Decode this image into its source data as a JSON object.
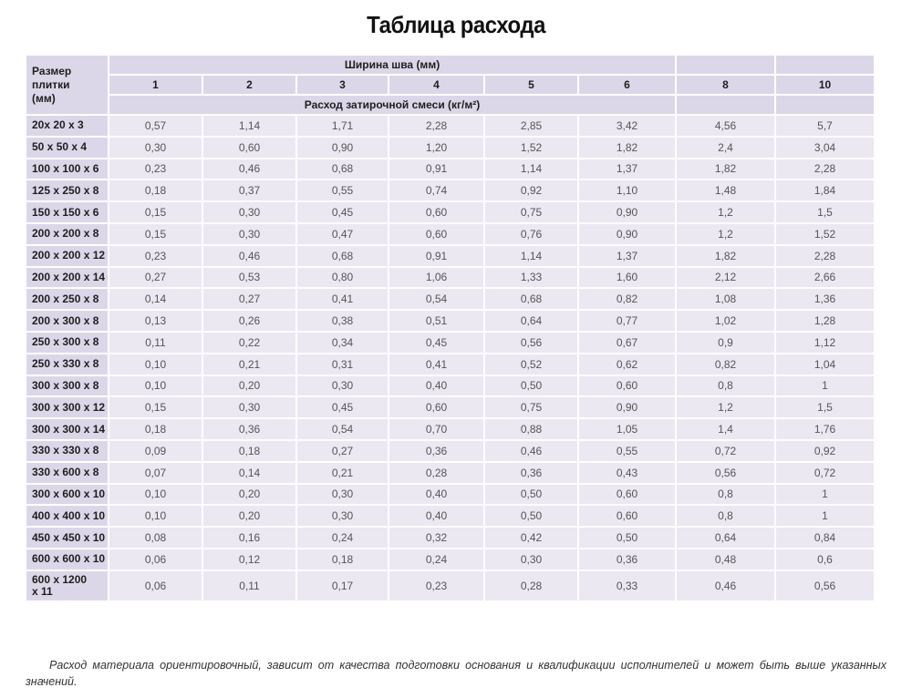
{
  "page": {
    "title": "Таблица расхода",
    "note": "Расход материала ориентировочный, зависит от качества подготовки основания и квалификации исполнителей и может быть выше указанных значений."
  },
  "table": {
    "size_header": "Размер плитки (мм)",
    "size_header_lines": [
      "Размер",
      "плитки",
      "(мм)"
    ],
    "group_header": "Ширина шва (мм)",
    "sub_header": "Расход затирочной смеси (кг/м²)",
    "columns": [
      "1",
      "2",
      "3",
      "4",
      "5",
      "6",
      "8",
      "10"
    ],
    "rows": [
      {
        "size": "20x 20 x 3",
        "values": [
          "0,57",
          "1,14",
          "1,71",
          "2,28",
          "2,85",
          "3,42",
          "4,56",
          "5,7"
        ]
      },
      {
        "size": "50 x 50 x 4",
        "values": [
          "0,30",
          "0,60",
          "0,90",
          "1,20",
          "1,52",
          "1,82",
          "2,4",
          "3,04"
        ]
      },
      {
        "size": "100 x 100 x 6",
        "values": [
          "0,23",
          "0,46",
          "0,68",
          "0,91",
          "1,14",
          "1,37",
          "1,82",
          "2,28"
        ]
      },
      {
        "size": "125 x 250 x 8",
        "values": [
          "0,18",
          "0,37",
          "0,55",
          "0,74",
          "0,92",
          "1,10",
          "1,48",
          "1,84"
        ]
      },
      {
        "size": "150 x 150 x 6",
        "values": [
          "0,15",
          "0,30",
          "0,45",
          "0,60",
          "0,75",
          "0,90",
          "1,2",
          "1,5"
        ]
      },
      {
        "size": "200 x 200 x 8",
        "values": [
          "0,15",
          "0,30",
          "0,47",
          "0,60",
          "0,76",
          "0,90",
          "1,2",
          "1,52"
        ]
      },
      {
        "size": "200 x 200 x 12",
        "values": [
          "0,23",
          "0,46",
          "0,68",
          "0,91",
          "1,14",
          "1,37",
          "1,82",
          "2,28"
        ]
      },
      {
        "size": "200 x 200 x 14",
        "values": [
          "0,27",
          "0,53",
          "0,80",
          "1,06",
          "1,33",
          "1,60",
          "2,12",
          "2,66"
        ]
      },
      {
        "size": "200 x 250 x 8",
        "values": [
          "0,14",
          "0,27",
          "0,41",
          "0,54",
          "0,68",
          "0,82",
          "1,08",
          "1,36"
        ]
      },
      {
        "size": "200 x 300 x 8",
        "values": [
          "0,13",
          "0,26",
          "0,38",
          "0,51",
          "0,64",
          "0,77",
          "1,02",
          "1,28"
        ]
      },
      {
        "size": "250 x 300 x 8",
        "values": [
          "0,11",
          "0,22",
          "0,34",
          "0,45",
          "0,56",
          "0,67",
          "0,9",
          "1,12"
        ]
      },
      {
        "size": "250 x 330 x 8",
        "values": [
          "0,10",
          "0,21",
          "0,31",
          "0,41",
          "0,52",
          "0,62",
          "0,82",
          "1,04"
        ]
      },
      {
        "size": "300 x 300 x 8",
        "values": [
          "0,10",
          "0,20",
          "0,30",
          "0,40",
          "0,50",
          "0,60",
          "0,8",
          "1"
        ]
      },
      {
        "size": "300 x 300 x 12",
        "values": [
          "0,15",
          "0,30",
          "0,45",
          "0,60",
          "0,75",
          "0,90",
          "1,2",
          "1,5"
        ]
      },
      {
        "size": "300 x 300 x 14",
        "values": [
          "0,18",
          "0,36",
          "0,54",
          "0,70",
          "0,88",
          "1,05",
          "1,4",
          "1,76"
        ]
      },
      {
        "size": "330 x 330 x 8",
        "values": [
          "0,09",
          "0,18",
          "0,27",
          "0,36",
          "0,46",
          "0,55",
          "0,72",
          "0,92"
        ]
      },
      {
        "size": "330 x 600 x 8",
        "values": [
          "0,07",
          "0,14",
          "0,21",
          "0,28",
          "0,36",
          "0,43",
          "0,56",
          "0,72"
        ]
      },
      {
        "size": "300 x 600 x 10",
        "values": [
          "0,10",
          "0,20",
          "0,30",
          "0,40",
          "0,50",
          "0,60",
          "0,8",
          "1"
        ]
      },
      {
        "size": "400 x 400 x 10",
        "values": [
          "0,10",
          "0,20",
          "0,30",
          "0,40",
          "0,50",
          "0,60",
          "0,8",
          "1"
        ]
      },
      {
        "size": "450 x 450 x 10",
        "values": [
          "0,08",
          "0,16",
          "0,24",
          "0,32",
          "0,42",
          "0,50",
          "0,64",
          "0,84"
        ]
      },
      {
        "size": "600 x 600 x 10",
        "values": [
          "0,06",
          "0,12",
          "0,18",
          "0,24",
          "0,30",
          "0,36",
          "0,48",
          "0,6"
        ]
      },
      {
        "size_lines": [
          "600 x 1200",
          "x 11"
        ],
        "size": "600 x 1200 x 11",
        "values": [
          "0,06",
          "0,11",
          "0,17",
          "0,23",
          "0,28",
          "0,33",
          "0,46",
          "0,56"
        ]
      }
    ]
  },
  "colors": {
    "header_bg": "#dcd7e8",
    "cell_bg": "#ebe8f1",
    "border": "#ffffff"
  }
}
